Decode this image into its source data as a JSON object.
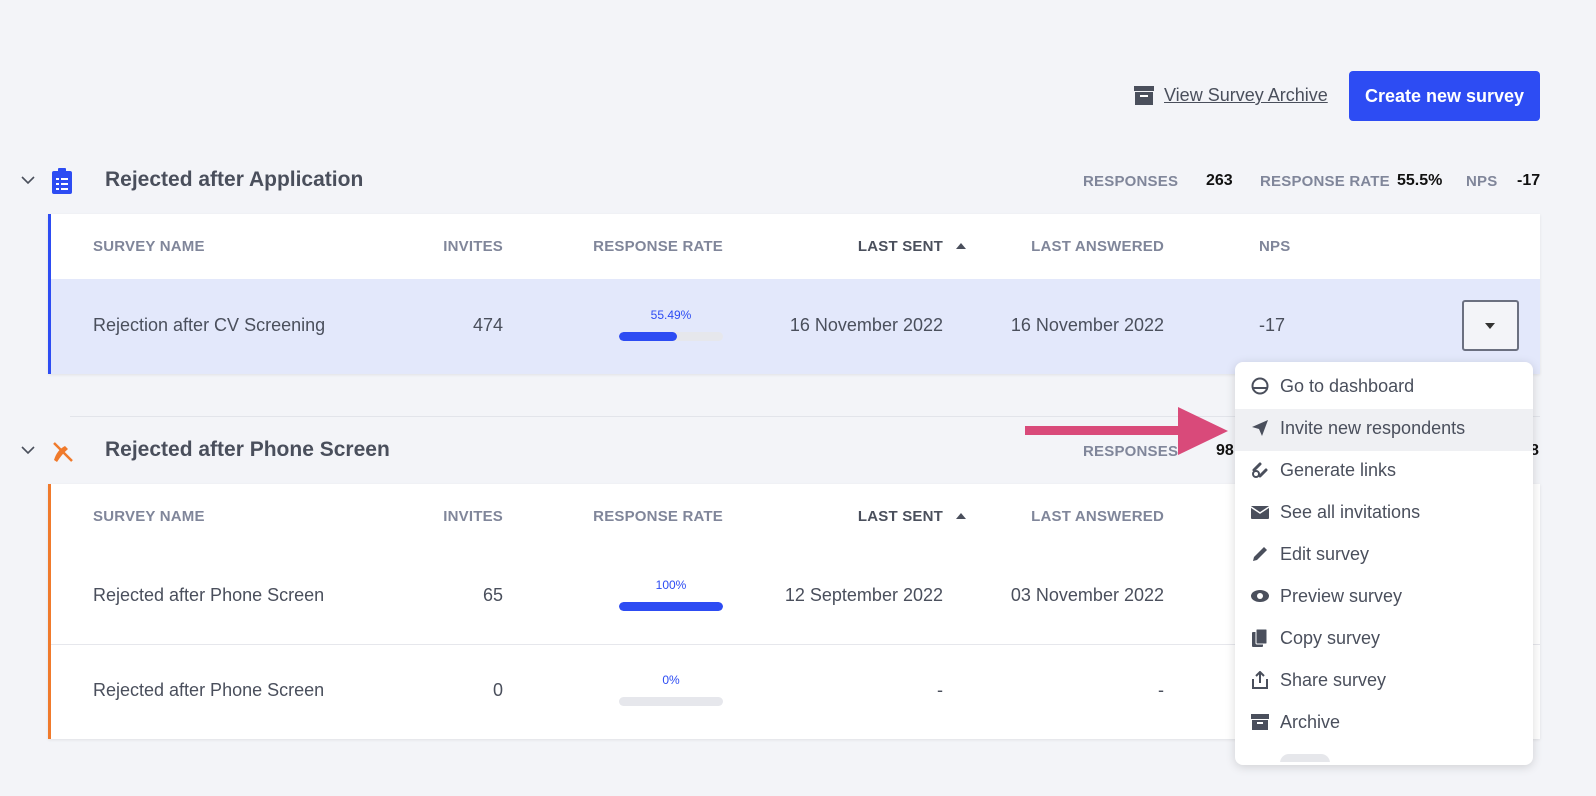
{
  "header": {
    "archive_link": "View Survey Archive",
    "create_button": "Create new survey"
  },
  "groups": [
    {
      "title": "Rejected after Application",
      "stats": {
        "responses_label": "RESPONSES",
        "responses": "263",
        "rate_label": "RESPONSE RATE",
        "rate": "55.5%",
        "nps_label": "NPS",
        "nps": "-17"
      },
      "columns": [
        "SURVEY NAME",
        "INVITES",
        "RESPONSE RATE",
        "LAST SENT",
        "LAST ANSWERED",
        "NPS"
      ],
      "rows": [
        [
          "Rejection after CV Screening",
          "474",
          "55.49%",
          "16 November 2022",
          "16 November 2022",
          "-17"
        ]
      ]
    },
    {
      "title": "Rejected after Phone Screen",
      "stats": {
        "responses_label": "RESPONSES",
        "responses": "98",
        "nps": "8"
      },
      "columns": [
        "SURVEY NAME",
        "INVITES",
        "RESPONSE RATE",
        "LAST SENT",
        "LAST ANSWERED"
      ],
      "rows": [
        [
          "Rejected after Phone Screen",
          "65",
          "100%",
          "12 September 2022",
          "03 November 2022"
        ],
        [
          "Rejected after Phone Screen",
          "0",
          "0%",
          "-",
          "-"
        ]
      ]
    }
  ],
  "menu": {
    "items": [
      "Go to dashboard",
      "Invite new respondents",
      "Generate links",
      "See all invitations",
      "Edit survey",
      "Preview survey",
      "Copy survey",
      "Share survey",
      "Archive"
    ]
  }
}
